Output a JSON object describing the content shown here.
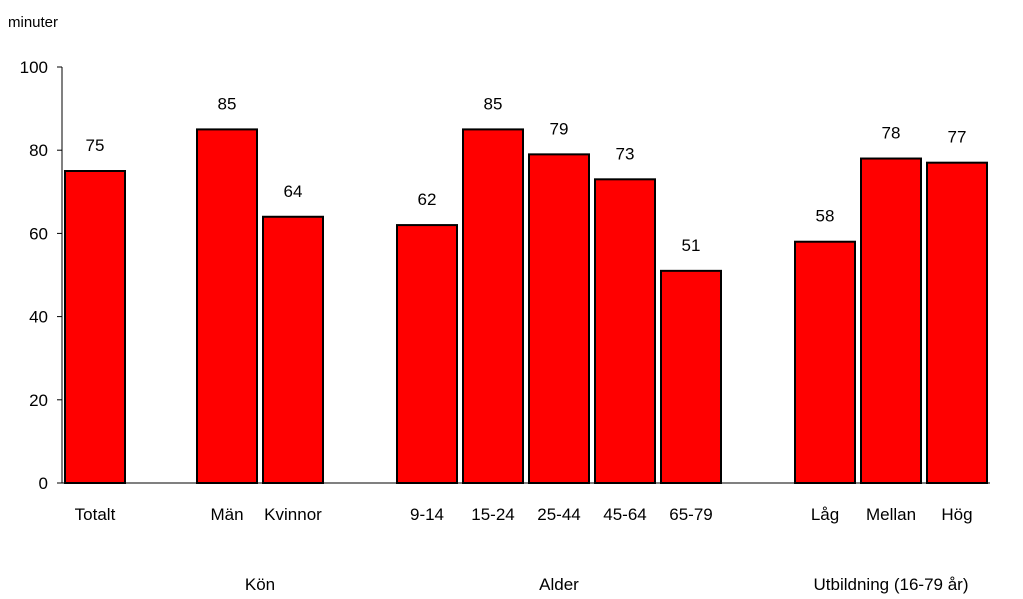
{
  "chart_data": {
    "type": "bar",
    "ylabel": "minuter",
    "ylim": [
      0,
      100
    ],
    "yticks": [
      0,
      20,
      40,
      60,
      80,
      100
    ],
    "grid": false,
    "legend": "none",
    "bar_color": "#ff0000",
    "categories": [
      "Totalt",
      "Män",
      "Kvinnor",
      "9-14",
      "15-24",
      "25-44",
      "45-64",
      "65-79",
      "Låg",
      "Mellan",
      "Hög"
    ],
    "values": [
      75,
      85,
      64,
      62,
      85,
      79,
      73,
      51,
      58,
      78,
      77
    ],
    "groups": [
      {
        "label": "",
        "categories": [
          "Totalt"
        ]
      },
      {
        "label": "Kön",
        "categories": [
          "Män",
          "Kvinnor"
        ]
      },
      {
        "label": "Alder",
        "categories": [
          "9-14",
          "15-24",
          "25-44",
          "45-64",
          "65-79"
        ]
      },
      {
        "label": "Utbildning (16-79 år)",
        "categories": [
          "Låg",
          "Mellan",
          "Hög"
        ]
      }
    ]
  }
}
